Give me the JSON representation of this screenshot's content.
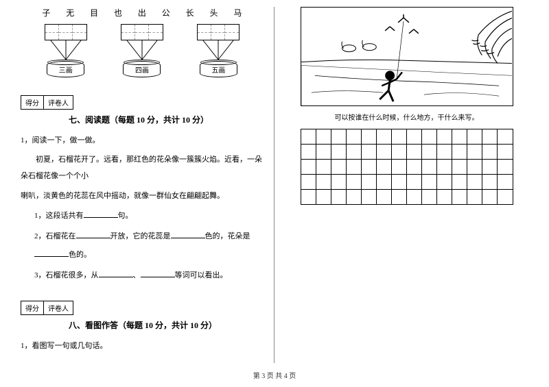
{
  "characters": [
    "子",
    "无",
    "目",
    "也",
    "出",
    "公",
    "长",
    "头",
    "马"
  ],
  "groups": [
    {
      "cells": 3,
      "label": "三画"
    },
    {
      "cells": 3,
      "label": "四画"
    },
    {
      "cells": 3,
      "label": "五画"
    }
  ],
  "scoreBox": {
    "left": "得分",
    "right": "评卷人"
  },
  "section7": {
    "title": "七、阅读题（每题 10 分，共计 10 分）",
    "q1": "1，阅读一下，做一做。",
    "passage_line1": "初夏，石榴花开了。远看，那红色的花朵像一簇簇火焰。近看，一朵朵石榴花像一个个小",
    "passage_line2": "喇叭，淡黄色的花蕊在风中摇动，就像一群仙女在翩翩起舞。",
    "sub1_a": "1，这段话共有",
    "sub1_b": "句。",
    "sub2_a": "2，石榴花在",
    "sub2_b": "开放，它的花蕊是",
    "sub2_c": "色的，花朵是",
    "sub2_d": "色的。",
    "sub3_a": "3，石榴花很多，从",
    "sub3_b": "、",
    "sub3_c": "等词可以看出。"
  },
  "section8": {
    "title": "八、看图作答（每题 10 分，共计 10 分）",
    "q1": "1，看图写一句或几句话。"
  },
  "caption": "可以按谁在什么时候，什么地方，干什么来写。",
  "answerGrid": {
    "rows": 5,
    "cols": 14
  },
  "footer": "第 3 页 共 4 页"
}
